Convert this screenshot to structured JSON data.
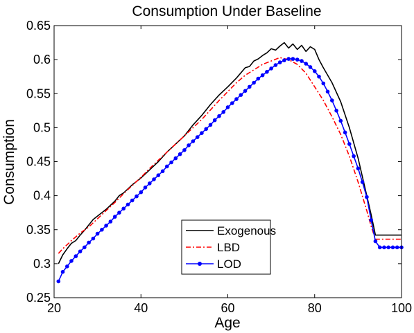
{
  "chart_data": {
    "type": "line",
    "title": "Consumption Under Baseline",
    "xlabel": "Age",
    "ylabel": "Consumption",
    "xlim": [
      20,
      100
    ],
    "ylim": [
      0.25,
      0.65
    ],
    "xticks": [
      20,
      40,
      60,
      80,
      100
    ],
    "yticks": [
      0.25,
      0.3,
      0.35,
      0.4,
      0.45,
      0.5,
      0.55,
      0.6,
      0.65
    ],
    "ytick_labels": [
      "0.25",
      "0.3",
      "0.35",
      "0.4",
      "0.45",
      "0.5",
      "0.55",
      "0.6",
      "0.65"
    ],
    "grid": false,
    "legend_position": "bottom-center",
    "series": [
      {
        "name": "Exogenous",
        "color": "#000000",
        "style": "solid",
        "points": [
          [
            21,
            0.3
          ],
          [
            22,
            0.313
          ],
          [
            23,
            0.322
          ],
          [
            24,
            0.33
          ],
          [
            25,
            0.334
          ],
          [
            26,
            0.342
          ],
          [
            27,
            0.349
          ],
          [
            28,
            0.357
          ],
          [
            29,
            0.365
          ],
          [
            30,
            0.37
          ],
          [
            32,
            0.38
          ],
          [
            34,
            0.392
          ],
          [
            35,
            0.4
          ],
          [
            36,
            0.404
          ],
          [
            38,
            0.416
          ],
          [
            40,
            0.426
          ],
          [
            42,
            0.438
          ],
          [
            44,
            0.45
          ],
          [
            46,
            0.464
          ],
          [
            48,
            0.476
          ],
          [
            50,
            0.488
          ],
          [
            52,
            0.504
          ],
          [
            54,
            0.518
          ],
          [
            56,
            0.534
          ],
          [
            58,
            0.548
          ],
          [
            60,
            0.56
          ],
          [
            62,
            0.573
          ],
          [
            64,
            0.588
          ],
          [
            65,
            0.59
          ],
          [
            66,
            0.598
          ],
          [
            67,
            0.601
          ],
          [
            68,
            0.606
          ],
          [
            69,
            0.61
          ],
          [
            70,
            0.616
          ],
          [
            71,
            0.614
          ],
          [
            72,
            0.62
          ],
          [
            73,
            0.625
          ],
          [
            74,
            0.617
          ],
          [
            75,
            0.623
          ],
          [
            76,
            0.615
          ],
          [
            77,
            0.621
          ],
          [
            78,
            0.612
          ],
          [
            79,
            0.619
          ],
          [
            80,
            0.615
          ],
          [
            81,
            0.6
          ],
          [
            82,
            0.588
          ],
          [
            84,
            0.566
          ],
          [
            86,
            0.538
          ],
          [
            88,
            0.5
          ],
          [
            90,
            0.455
          ],
          [
            92,
            0.4
          ],
          [
            93,
            0.372
          ],
          [
            94,
            0.342
          ],
          [
            96,
            0.342
          ],
          [
            98,
            0.342
          ],
          [
            100,
            0.342
          ]
        ]
      },
      {
        "name": "LBD",
        "color": "#ff0000",
        "style": "dashdot",
        "points": [
          [
            21,
            0.315
          ],
          [
            22,
            0.322
          ],
          [
            23,
            0.328
          ],
          [
            24,
            0.334
          ],
          [
            26,
            0.345
          ],
          [
            28,
            0.354
          ],
          [
            30,
            0.366
          ],
          [
            32,
            0.378
          ],
          [
            34,
            0.39
          ],
          [
            36,
            0.403
          ],
          [
            38,
            0.415
          ],
          [
            40,
            0.427
          ],
          [
            42,
            0.44
          ],
          [
            44,
            0.452
          ],
          [
            46,
            0.464
          ],
          [
            48,
            0.476
          ],
          [
            50,
            0.488
          ],
          [
            52,
            0.5
          ],
          [
            54,
            0.512
          ],
          [
            56,
            0.526
          ],
          [
            58,
            0.54
          ],
          [
            60,
            0.553
          ],
          [
            62,
            0.566
          ],
          [
            64,
            0.577
          ],
          [
            66,
            0.585
          ],
          [
            68,
            0.593
          ],
          [
            70,
            0.598
          ],
          [
            72,
            0.603
          ],
          [
            74,
            0.6
          ],
          [
            76,
            0.593
          ],
          [
            78,
            0.58
          ],
          [
            80,
            0.56
          ],
          [
            82,
            0.54
          ],
          [
            84,
            0.516
          ],
          [
            86,
            0.49
          ],
          [
            88,
            0.458
          ],
          [
            90,
            0.42
          ],
          [
            92,
            0.378
          ],
          [
            93,
            0.355
          ],
          [
            94,
            0.336
          ],
          [
            96,
            0.336
          ],
          [
            98,
            0.336
          ],
          [
            100,
            0.336
          ]
        ]
      },
      {
        "name": "LOD",
        "color": "#0000ff",
        "style": "solid-markers",
        "points": [
          [
            21,
            0.274
          ],
          [
            22,
            0.288
          ],
          [
            23,
            0.296
          ],
          [
            24,
            0.304
          ],
          [
            25,
            0.311
          ],
          [
            26,
            0.318
          ],
          [
            27,
            0.324
          ],
          [
            28,
            0.331
          ],
          [
            29,
            0.337
          ],
          [
            30,
            0.344
          ],
          [
            31,
            0.35
          ],
          [
            32,
            0.356
          ],
          [
            33,
            0.362
          ],
          [
            34,
            0.369
          ],
          [
            35,
            0.375
          ],
          [
            36,
            0.381
          ],
          [
            37,
            0.387
          ],
          [
            38,
            0.393
          ],
          [
            39,
            0.399
          ],
          [
            40,
            0.405
          ],
          [
            41,
            0.412
          ],
          [
            42,
            0.418
          ],
          [
            43,
            0.424
          ],
          [
            44,
            0.43
          ],
          [
            45,
            0.436
          ],
          [
            46,
            0.443
          ],
          [
            47,
            0.449
          ],
          [
            48,
            0.455
          ],
          [
            49,
            0.461
          ],
          [
            50,
            0.467
          ],
          [
            51,
            0.474
          ],
          [
            52,
            0.48
          ],
          [
            53,
            0.486
          ],
          [
            54,
            0.492
          ],
          [
            55,
            0.498
          ],
          [
            56,
            0.504
          ],
          [
            57,
            0.511
          ],
          [
            58,
            0.517
          ],
          [
            59,
            0.523
          ],
          [
            60,
            0.53
          ],
          [
            61,
            0.536
          ],
          [
            62,
            0.542
          ],
          [
            63,
            0.548
          ],
          [
            64,
            0.554
          ],
          [
            65,
            0.56
          ],
          [
            66,
            0.566
          ],
          [
            67,
            0.572
          ],
          [
            68,
            0.577
          ],
          [
            69,
            0.582
          ],
          [
            70,
            0.587
          ],
          [
            71,
            0.592
          ],
          [
            72,
            0.596
          ],
          [
            73,
            0.599
          ],
          [
            74,
            0.601
          ],
          [
            75,
            0.601
          ],
          [
            76,
            0.6
          ],
          [
            77,
            0.598
          ],
          [
            78,
            0.594
          ],
          [
            79,
            0.589
          ],
          [
            80,
            0.583
          ],
          [
            81,
            0.575
          ],
          [
            82,
            0.565
          ],
          [
            83,
            0.553
          ],
          [
            84,
            0.54
          ],
          [
            85,
            0.525
          ],
          [
            86,
            0.51
          ],
          [
            87,
            0.493
          ],
          [
            88,
            0.476
          ],
          [
            89,
            0.458
          ],
          [
            90,
            0.44
          ],
          [
            91,
            0.42
          ],
          [
            92,
            0.398
          ],
          [
            93,
            0.364
          ],
          [
            94,
            0.333
          ],
          [
            95,
            0.324
          ],
          [
            96,
            0.324
          ],
          [
            97,
            0.324
          ],
          [
            98,
            0.324
          ],
          [
            99,
            0.324
          ],
          [
            100,
            0.324
          ]
        ]
      }
    ]
  }
}
